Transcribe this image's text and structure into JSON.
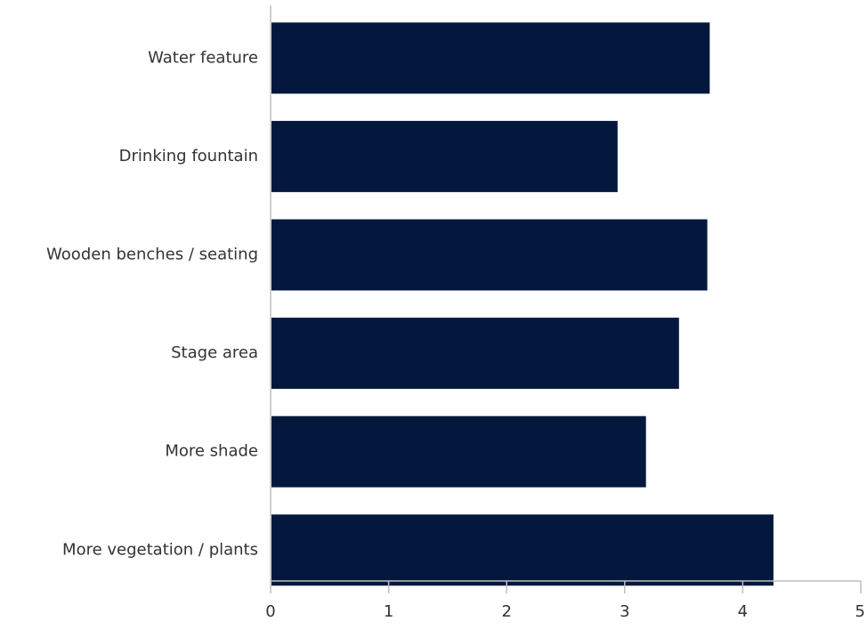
{
  "chart_data": {
    "type": "bar",
    "orientation": "horizontal",
    "categories": [
      "Water feature",
      "Drinking fountain",
      "Wooden benches / seating",
      "Stage area",
      "More shade",
      "More vegetation / plants"
    ],
    "values": [
      3.72,
      2.94,
      3.7,
      3.46,
      3.18,
      4.26
    ],
    "xlim": [
      0,
      5
    ],
    "xticks": [
      "0",
      "1",
      "2",
      "3",
      "4",
      "5"
    ],
    "grid": false,
    "legend": "none",
    "bar_color": "#03183c",
    "axis_color": "#bfbfbf"
  }
}
